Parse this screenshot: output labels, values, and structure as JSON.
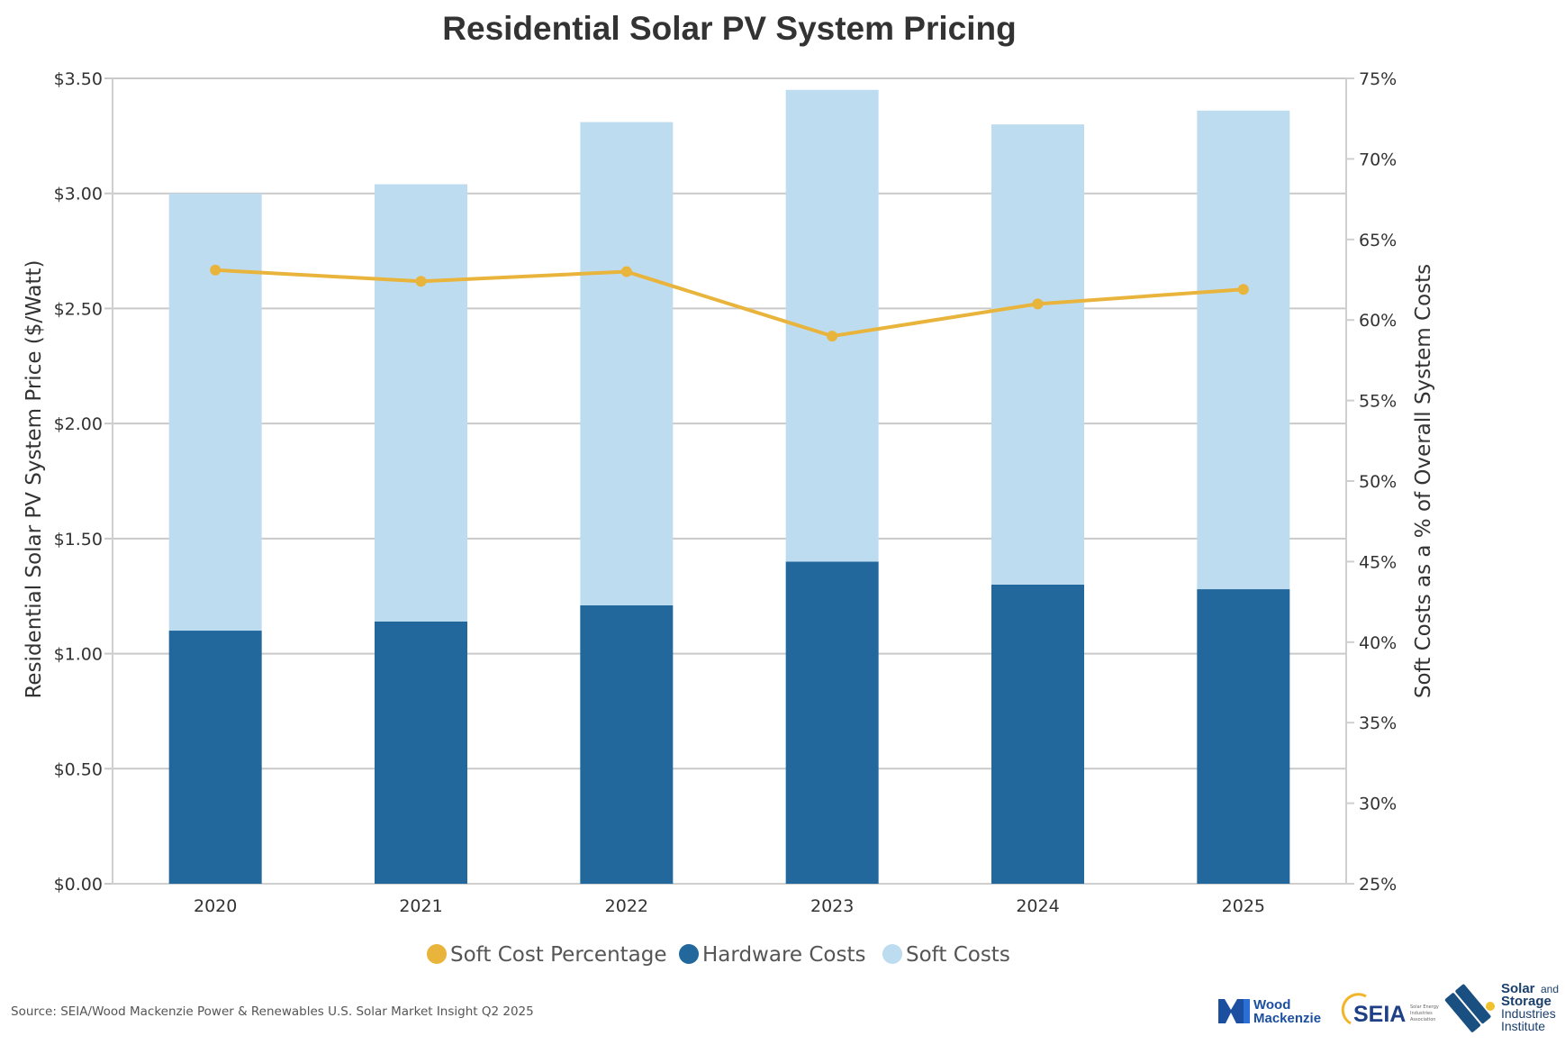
{
  "chart_data": {
    "type": "bar",
    "title": "Residential Solar PV System Pricing",
    "categories": [
      "2020",
      "2021",
      "2022",
      "2023",
      "2024",
      "2025"
    ],
    "stacked": true,
    "series": [
      {
        "name": "Hardware Costs",
        "type": "bar",
        "axis": "left",
        "color": "#22689c",
        "values": [
          1.1,
          1.14,
          1.21,
          1.4,
          1.3,
          1.28
        ]
      },
      {
        "name": "Soft Costs",
        "type": "bar",
        "axis": "left",
        "color": "#bedcf0",
        "values": [
          1.9,
          1.9,
          2.1,
          2.05,
          2.0,
          2.08
        ]
      },
      {
        "name": "Soft Cost Percentage",
        "type": "line",
        "axis": "right",
        "color": "#e9b43c",
        "values": [
          63.1,
          62.4,
          63.0,
          59.0,
          61.0,
          61.9
        ]
      }
    ],
    "y_left": {
      "label": "Residential Solar PV System Price ($/Watt)",
      "lim": [
        0,
        3.5
      ],
      "ticks": [
        "$0.00",
        "$0.50",
        "$1.00",
        "$1.50",
        "$2.00",
        "$2.50",
        "$3.00",
        "$3.50"
      ]
    },
    "y_right": {
      "label": "Soft Costs as a % of Overall System Costs",
      "lim": [
        25,
        75
      ],
      "ticks": [
        "25%",
        "30%",
        "35%",
        "40%",
        "45%",
        "50%",
        "55%",
        "60%",
        "65%",
        "70%",
        "75%"
      ]
    },
    "legend": {
      "position": "bottom",
      "items": [
        {
          "name": "Soft Cost Percentage",
          "color": "#e9b43c"
        },
        {
          "name": "Hardware Costs",
          "color": "#22689c"
        },
        {
          "name": "Soft Costs",
          "color": "#bedcf0"
        }
      ]
    },
    "grid": true
  },
  "footer": {
    "source": "Source: SEIA/Wood Mackenzie Power & Renewables U.S. Solar Market Insight Q2 2025"
  },
  "logos": {
    "wood_mackenzie": {
      "line1": "Wood",
      "line2": "Mackenzie"
    },
    "seia": {
      "name": "SEIA",
      "subtitle": [
        "Solar Energy",
        "Industries",
        "Association"
      ]
    },
    "ssii": {
      "line1a": "Solar",
      "line1b": "and",
      "line2": "Storage",
      "line3": "Industries",
      "line4": "Institute"
    }
  }
}
